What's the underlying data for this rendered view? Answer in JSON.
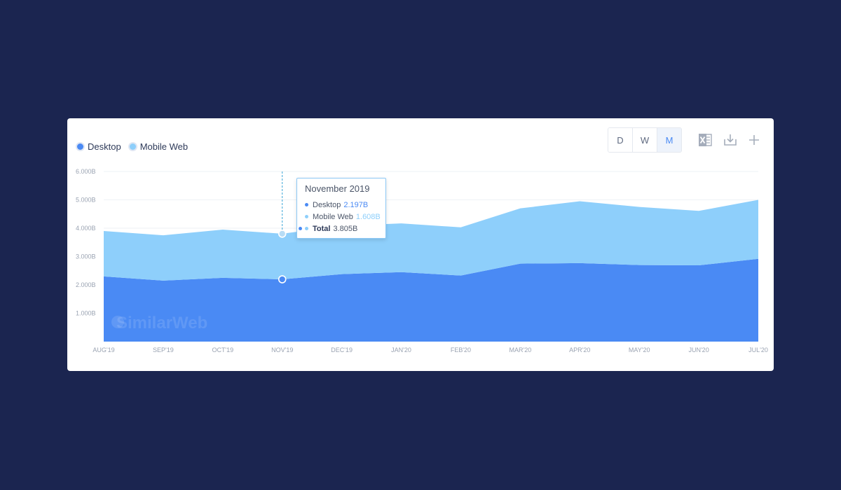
{
  "legend": [
    {
      "name": "Desktop",
      "color": "#4a8af4"
    },
    {
      "name": "Mobile Web",
      "color": "#8ecffb"
    }
  ],
  "granularity": {
    "options": [
      "D",
      "W",
      "M"
    ],
    "selected": "M"
  },
  "toolbar": {
    "icons": [
      "excel-export-icon",
      "download-icon",
      "add-icon"
    ]
  },
  "watermark": "SimilarWeb",
  "tooltip": {
    "title": "November 2019",
    "desktop_label": "Desktop",
    "desktop_value": "2.197B",
    "mobile_label": "Mobile Web",
    "mobile_value": "1.608B",
    "total_label": "Total",
    "total_value": "3.805B"
  },
  "chart_data": {
    "type": "area",
    "stacked": true,
    "categories": [
      "AUG'19",
      "SEP'19",
      "OCT'19",
      "NOV'19",
      "DEC'19",
      "JAN'20",
      "FEB'20",
      "MAR'20",
      "APR'20",
      "MAY'20",
      "JUN'20",
      "JUL'20"
    ],
    "series": [
      {
        "name": "Desktop",
        "color": "#4a8af4",
        "values": [
          2.3,
          2.15,
          2.25,
          2.197,
          2.38,
          2.45,
          2.33,
          2.75,
          2.77,
          2.7,
          2.69,
          2.92
        ]
      },
      {
        "name": "Mobile Web",
        "color": "#8ecffb",
        "values": [
          1.6,
          1.6,
          1.7,
          1.608,
          1.7,
          1.72,
          1.7,
          1.95,
          2.18,
          2.05,
          1.92,
          2.08
        ]
      }
    ],
    "ylim": [
      0,
      6
    ],
    "yticks": [
      1,
      2,
      3,
      4,
      5,
      6
    ],
    "ytick_labels": [
      "1.000B",
      "2.000B",
      "3.000B",
      "4.000B",
      "5.000B",
      "6.000B"
    ],
    "grid": true,
    "highlight_category": "NOV'19"
  }
}
